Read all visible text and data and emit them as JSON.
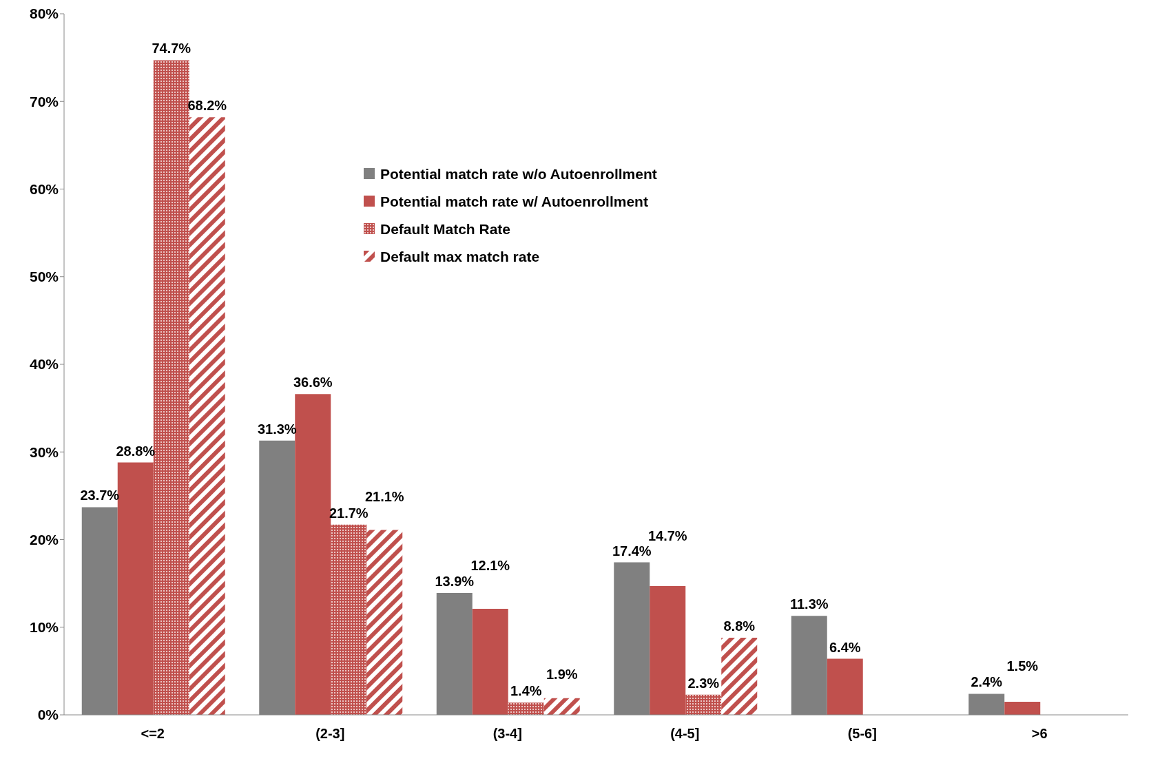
{
  "chart_data": {
    "type": "bar",
    "categories": [
      "<=2",
      "(2-3]",
      "(3-4]",
      "(4-5]",
      "(5-6]",
      ">6"
    ],
    "series": [
      {
        "name": "Potential match rate w/o Autoenrollment",
        "color": "#808080",
        "values": [
          23.7,
          31.3,
          13.9,
          17.4,
          11.3,
          2.4
        ],
        "value_labels": [
          "23.7%",
          "31.3%",
          "13.9%",
          "17.4%",
          "11.3%",
          "2.4%"
        ]
      },
      {
        "name": "Potential match rate w/ Autoenrollment",
        "color": "#c0504d",
        "values": [
          28.8,
          36.6,
          12.1,
          14.7,
          6.4,
          1.5
        ],
        "value_labels": [
          "28.8%",
          "36.6%",
          "12.1%",
          "14.7%",
          "6.4%",
          "1.5%"
        ]
      },
      {
        "name": "Default Match Rate",
        "color": "#c0504d",
        "values": [
          74.7,
          21.7,
          1.4,
          2.3,
          null,
          null
        ],
        "value_labels": [
          "74.7%",
          "21.7%",
          "1.4%",
          "2.3%",
          null,
          null
        ]
      },
      {
        "name": "Default max match rate",
        "color": "#c0504d",
        "values": [
          68.2,
          21.1,
          1.9,
          8.8,
          null,
          null
        ],
        "value_labels": [
          "68.2%",
          "21.1%",
          "1.9%",
          "8.8%",
          null,
          null
        ]
      }
    ],
    "ylim": [
      0,
      80
    ],
    "yticks": [
      {
        "value": 0,
        "label": "0%"
      },
      {
        "value": 10,
        "label": "10%"
      },
      {
        "value": 20,
        "label": "20%"
      },
      {
        "value": 30,
        "label": "30%"
      },
      {
        "value": 40,
        "label": "40%"
      },
      {
        "value": 50,
        "label": "50%"
      },
      {
        "value": 60,
        "label": "60%"
      },
      {
        "value": 70,
        "label": "70%"
      },
      {
        "value": 80,
        "label": "80%"
      }
    ],
    "grid": false,
    "legend": "top"
  }
}
